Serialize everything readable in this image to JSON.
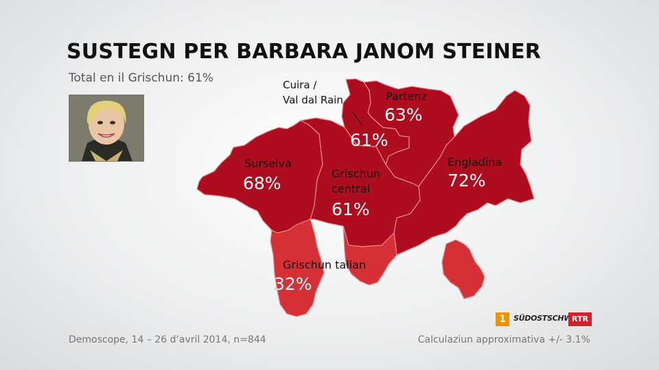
{
  "title": "SUSTEGN PER BARBARA JANOM STEINER",
  "subtitle": "Total en il Grischun: 61%",
  "colors": {
    "region_dark": "#ae0d1f",
    "region_light": "#d53036",
    "border": "#e58a8f"
  },
  "regions": [
    {
      "name": "Surselva",
      "value": "68%"
    },
    {
      "name": "Grischun central",
      "value": "61%"
    },
    {
      "name": "Cuira / Val dal Rain",
      "value": "61%"
    },
    {
      "name": "Partenz",
      "value": "63%"
    },
    {
      "name": "Engiadina",
      "value": "72%"
    },
    {
      "name": "Grischun talian",
      "value": "32%"
    }
  ],
  "labels": {
    "cuira_line1": "Cuira /",
    "cuira_line2": "Val dal Rain",
    "central_line1": "Grischun",
    "central_line2": "central"
  },
  "footer": {
    "source": "Demoscope, 14 – 26 d’avril 2014, n=844",
    "margin": "Calculaziun approximativa +/- 3.1%"
  },
  "logos": {
    "srf_digit": "1",
    "newspaper": "SÜDOSTSCHWEIZ",
    "broadcaster": "RTR"
  }
}
